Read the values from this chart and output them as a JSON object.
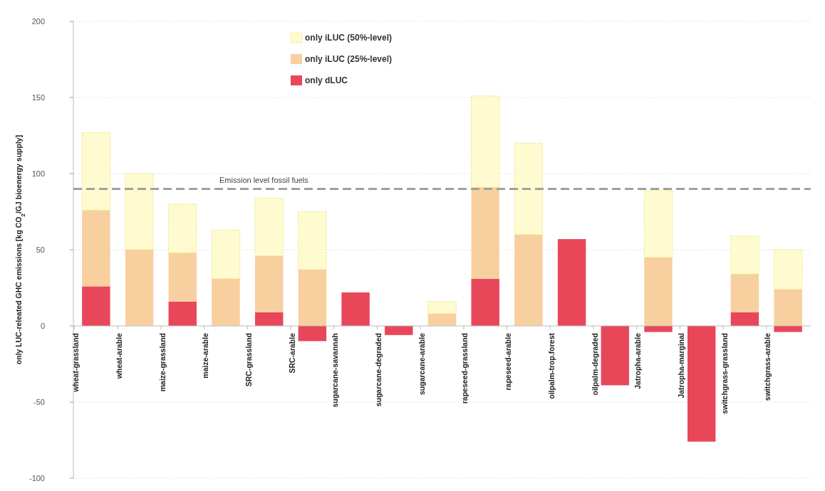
{
  "chart_data": {
    "type": "bar",
    "stacked": true,
    "ylabel": "only LUC-releated GHC emissions [kg CO$_{2}$/GJ bioenergy supply]",
    "categories": [
      "wheat-grassland",
      "wheat-arable",
      "maize-grassland",
      "maize-arable",
      "SRC-grassland",
      "SRC-arable",
      "sugarcane-savannah",
      "sugarcane-degraded",
      "sugarcane-arable",
      "rapeseed-grassland",
      "rapeseed-arable",
      "oilpalm-trop.forest",
      "oilpalm-degraded",
      "Jatropha-arable",
      "Jatropha-marginal",
      "switchgrass-grassland",
      "switchgrass-arable"
    ],
    "series": [
      {
        "name": "only dLUC",
        "color": "#e8475a",
        "values": [
          26,
          null,
          16,
          null,
          9,
          -10,
          22,
          -6,
          null,
          31,
          null,
          57,
          -39,
          -4,
          -76,
          9,
          -4
        ]
      },
      {
        "name": "only iLUC (25%-level)",
        "color": "#f8cf9f",
        "values": [
          50,
          50,
          32,
          31,
          37,
          37,
          null,
          null,
          8,
          60,
          60,
          null,
          null,
          45,
          null,
          25,
          24
        ]
      },
      {
        "name": "only iLUC (50%-level)",
        "color": "#fffbd0",
        "values": [
          51,
          50,
          32,
          32,
          38,
          38,
          null,
          null,
          8,
          60,
          60,
          null,
          null,
          44,
          null,
          25,
          26
        ]
      }
    ],
    "ylim": [
      -100,
      200
    ],
    "yticks": [
      -100,
      -50,
      0,
      50,
      100,
      150,
      200
    ],
    "grid": "y",
    "legend": "top",
    "ref_lines": [
      {
        "axis": "y",
        "value": 90,
        "label": "Emission level fossil fuels",
        "color": "#a0a0a0",
        "line_style": "dashed"
      }
    ]
  }
}
